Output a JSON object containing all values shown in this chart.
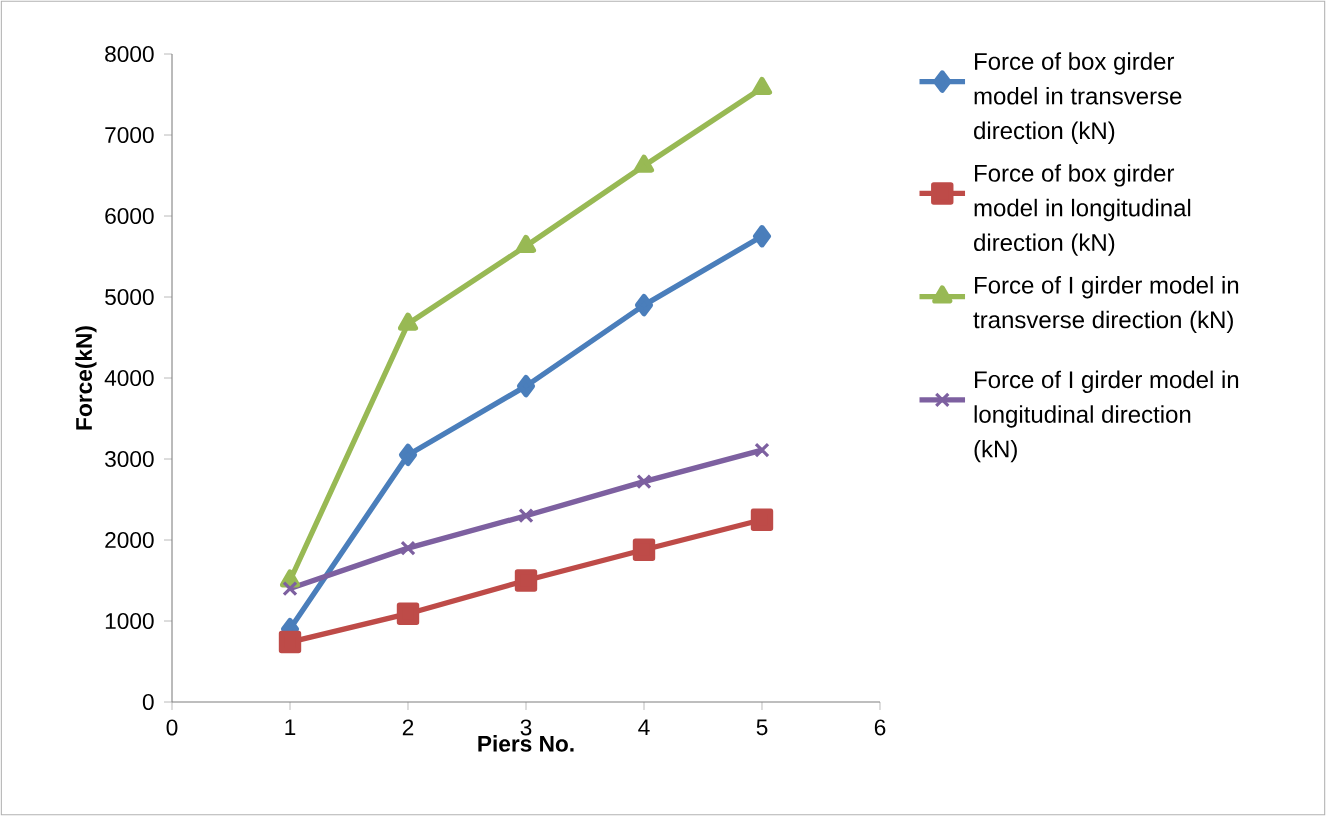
{
  "chart_data": {
    "type": "line",
    "xlabel": "Piers No.",
    "ylabel": "Force(kN)",
    "xlim": [
      0,
      6
    ],
    "xticks": [
      0,
      1,
      2,
      3,
      4,
      5,
      6
    ],
    "ylim": [
      0,
      8000
    ],
    "yticks": [
      0,
      1000,
      2000,
      3000,
      4000,
      5000,
      6000,
      7000,
      8000
    ],
    "grid": false,
    "legend": "right",
    "line_style": "solid",
    "series": [
      {
        "name": "Force of box girder model in transverse direction (kN)",
        "color": "#4a7ebb",
        "marker": "diamond",
        "x": [
          1,
          2,
          3,
          4,
          5
        ],
        "values": [
          900,
          3050,
          3900,
          4900,
          5750
        ]
      },
      {
        "name": "Force of box girder model in longitudinal direction (kN)",
        "color": "#be4b48",
        "marker": "square",
        "x": [
          1,
          2,
          3,
          4,
          5
        ],
        "values": [
          740,
          1090,
          1500,
          1880,
          2250
        ]
      },
      {
        "name": "Force of I girder model in transverse direction (kN)",
        "color": "#98b954",
        "marker": "triangle",
        "x": [
          1,
          2,
          3,
          4,
          5
        ],
        "values": [
          1500,
          4670,
          5630,
          6620,
          7580
        ]
      },
      {
        "name": "Force of I girder model in longitudinal direction (kN)",
        "color": "#7d60a0",
        "marker": "cross",
        "x": [
          1,
          2,
          3,
          4,
          5
        ],
        "values": [
          1400,
          1900,
          2300,
          2720,
          3110
        ]
      }
    ]
  }
}
